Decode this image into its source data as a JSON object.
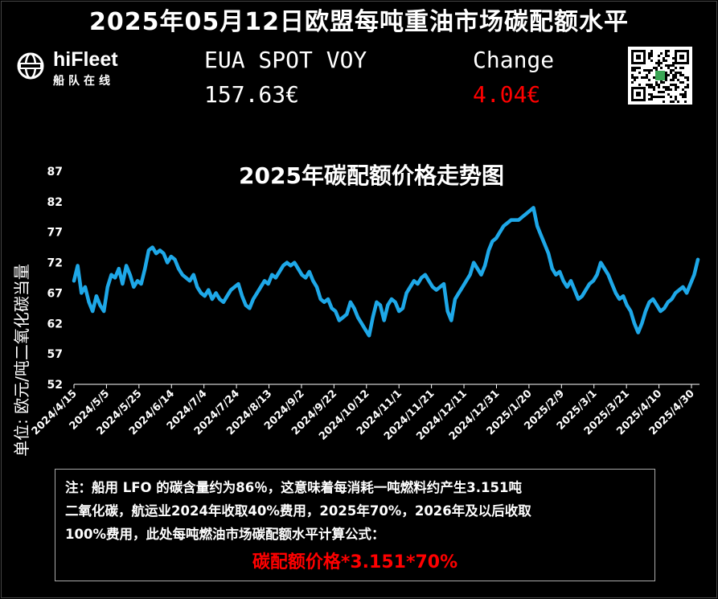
{
  "header": {
    "title": "2025年05月12日欧盟每吨重油市场碳配额水平"
  },
  "brand": {
    "name": "hiFleet",
    "subtitle": "船队在线"
  },
  "ticker": {
    "label": "EUA SPOT VOY",
    "value": "157.63€",
    "change_label": "Change",
    "change_value": "4.04€",
    "change_color": "#ff0000"
  },
  "qr": {
    "icon": "qr-code-icon"
  },
  "chart_data": {
    "type": "line",
    "title": "2025年碳配额价格走势图",
    "ylabel": "单位: 欧元/吨二氧化碳当量",
    "xlabel": "",
    "ylim": [
      52,
      87
    ],
    "yticks": [
      52,
      57,
      62,
      67,
      72,
      77,
      82,
      87
    ],
    "xticks": [
      "2024/4/15",
      "2024/5/5",
      "2024/5/25",
      "2024/6/14",
      "2024/7/4",
      "2024/7/24",
      "2024/8/13",
      "2024/9/2",
      "2024/9/22",
      "2024/10/12",
      "2024/11/1",
      "2024/11/21",
      "2024/12/11",
      "2024/12/31",
      "2025/1/20",
      "2025/2/9",
      "2025/3/1",
      "2025/3/21",
      "2025/4/10",
      "2025/4/30"
    ],
    "line_color": "#1ea8e8",
    "grid": false,
    "series": [
      {
        "values": [
          69,
          71.5,
          67,
          68,
          65.5,
          64,
          66.5,
          65,
          64,
          68,
          70,
          69.5,
          71,
          68.5,
          71.5,
          70,
          68,
          69,
          68.5,
          71,
          74,
          74.5,
          73.5,
          74,
          73.5,
          72,
          73,
          72.5,
          71,
          70,
          69.5,
          69,
          70,
          68,
          67,
          66.5,
          67.5,
          66,
          67,
          66,
          65.5,
          66.5,
          67.5,
          68,
          68.5,
          66.5,
          65,
          64.5,
          66,
          67,
          68,
          69,
          68.5,
          70,
          69.5,
          70.5,
          71.5,
          72,
          71.5,
          72,
          71,
          70,
          69.5,
          70.5,
          69,
          68,
          66,
          65.5,
          66,
          64.5,
          64,
          62.5,
          63,
          63.5,
          65.5,
          64.5,
          63,
          62,
          61,
          60,
          63,
          65.5,
          65,
          62.5,
          65,
          66,
          65.5,
          64,
          64.5,
          67,
          68,
          69,
          68.5,
          69.5,
          70,
          69,
          68,
          67.5,
          68,
          68.5,
          64,
          62.5,
          66,
          67,
          68,
          69,
          70,
          72,
          71,
          70,
          71.5,
          74,
          75.5,
          76,
          77,
          78,
          78.5,
          79,
          79,
          79,
          79.5,
          80,
          80.5,
          81,
          78,
          76.5,
          75,
          73.5,
          71,
          70,
          70.5,
          69,
          68,
          69,
          67.5,
          66,
          66.5,
          67.5,
          68.5,
          69,
          70,
          72,
          71,
          70,
          68.5,
          67,
          66,
          66.5,
          65,
          64,
          62,
          60.5,
          62,
          64,
          65.5,
          66,
          65,
          64,
          64.5,
          65.5,
          66,
          67,
          67.5,
          68,
          67,
          68.5,
          70,
          72.5
        ]
      }
    ]
  },
  "note": {
    "lines": [
      "注：船用 LFO 的碳含量约为86％，这意味着每消耗一吨燃料约产生3.151吨",
      "二氧化碳，航运业2024年收取40%费用，2025年70%，2026年及以后收取",
      "100%费用，此处每吨燃油市场碳配额水平计算公式："
    ],
    "formula": "碳配额价格*3.151*70%",
    "formula_color": "#ff0000"
  }
}
